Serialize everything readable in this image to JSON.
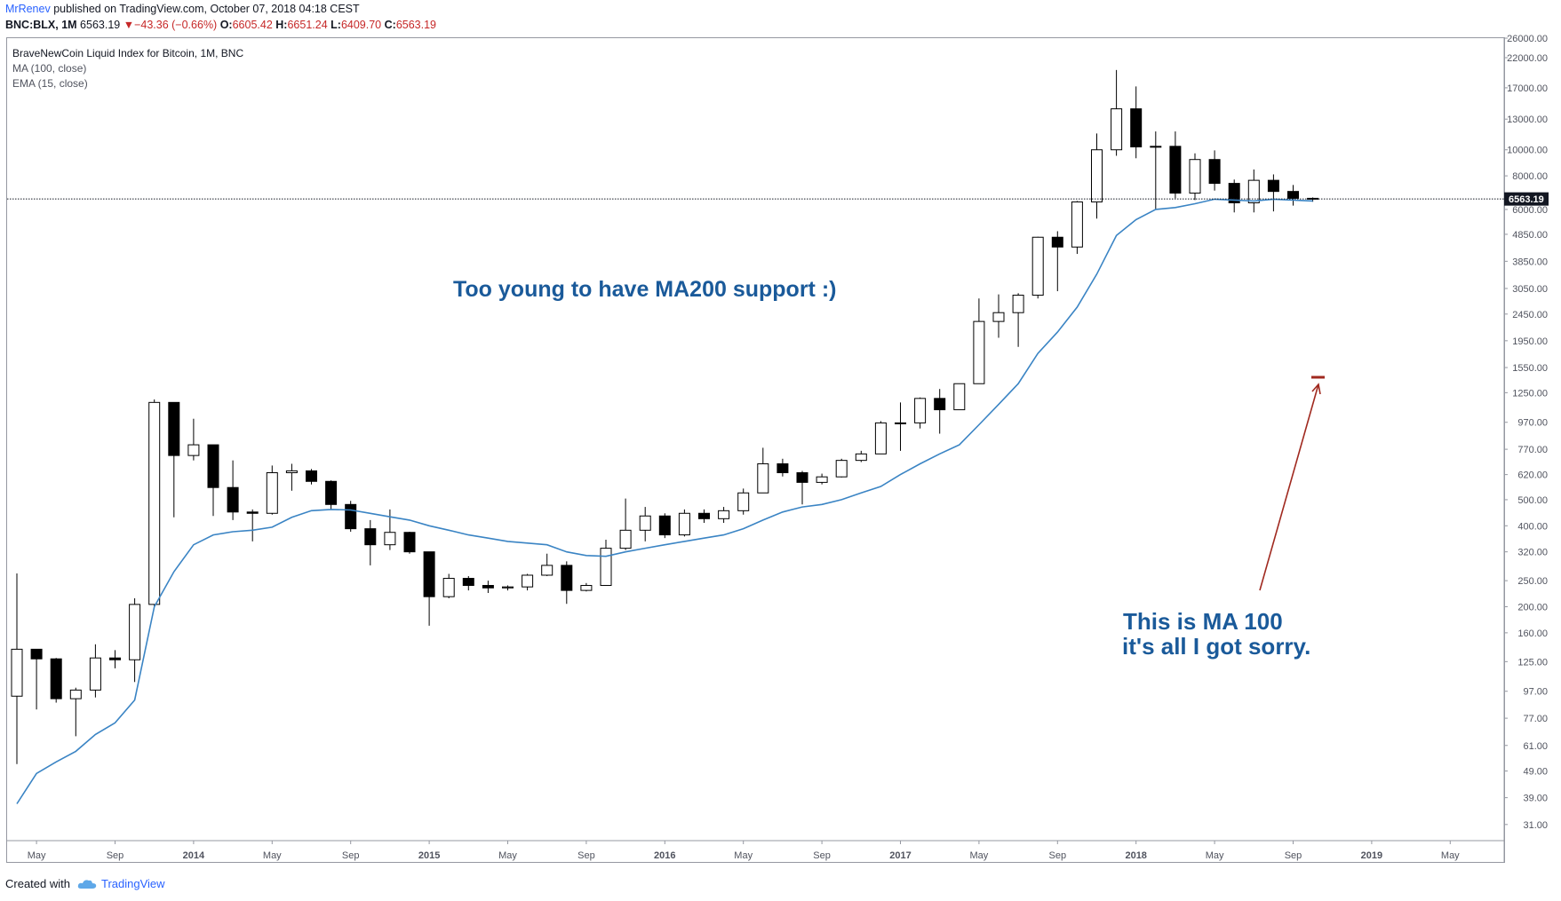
{
  "header": {
    "author": "MrRenev",
    "published": "published on TradingView.com, October 07, 2018 04:18 CEST"
  },
  "ohlc": {
    "symbol": "BNC:BLX, 1M",
    "last": "6563.19",
    "change": "−43.36 (−0.66%)",
    "o_label": "O:",
    "o": "6605.42",
    "h_label": "H:",
    "h": "6651.24",
    "l_label": "L:",
    "l": "6409.70",
    "c_label": "C:",
    "c": "6563.19"
  },
  "legend": {
    "title": "BraveNewCoin Liquid Index for Bitcoin, 1M, BNC",
    "ma": "MA (100, close)",
    "ema": "EMA (15, close)"
  },
  "footer": {
    "created": "Created with",
    "brand": "TradingView"
  },
  "chart_data": {
    "type": "candlestick",
    "y_scale": "log",
    "ylim": [
      27,
      26000
    ],
    "y_ticks": [
      "26000.00",
      "22000.00",
      "17000.00",
      "13000.00",
      "10000.00",
      "8000.00",
      "6000.00",
      "4850.00",
      "3850.00",
      "3050.00",
      "2450.00",
      "1950.00",
      "1550.00",
      "1250.00",
      "970.00",
      "770.00",
      "620.00",
      "500.00",
      "400.00",
      "320.00",
      "250.00",
      "200.00",
      "160.00",
      "125.00",
      "97.00",
      "77.00",
      "61.00",
      "49.00",
      "39.00",
      "31.00"
    ],
    "x_ticks": [
      "May",
      "Sep",
      "2014",
      "May",
      "Sep",
      "2015",
      "May",
      "Sep",
      "2016",
      "May",
      "Sep",
      "2017",
      "May",
      "Sep",
      "2018",
      "May",
      "Sep",
      "2019",
      "May"
    ],
    "first_month": "2013-04",
    "last_price_label": "6563.19",
    "candles": [
      {
        "o": 93,
        "h": 266,
        "l": 52,
        "c": 139
      },
      {
        "o": 139,
        "h": 139,
        "l": 83,
        "c": 128
      },
      {
        "o": 128,
        "h": 129,
        "l": 88,
        "c": 91
      },
      {
        "o": 91,
        "h": 100,
        "l": 66,
        "c": 98
      },
      {
        "o": 98,
        "h": 145,
        "l": 92,
        "c": 129
      },
      {
        "o": 129,
        "h": 138,
        "l": 118,
        "c": 127
      },
      {
        "o": 127,
        "h": 215,
        "l": 105,
        "c": 204
      },
      {
        "o": 204,
        "h": 1180,
        "l": 200,
        "c": 1150
      },
      {
        "o": 1150,
        "h": 1150,
        "l": 430,
        "c": 730
      },
      {
        "o": 730,
        "h": 1000,
        "l": 700,
        "c": 800
      },
      {
        "o": 800,
        "h": 800,
        "l": 435,
        "c": 555
      },
      {
        "o": 555,
        "h": 700,
        "l": 420,
        "c": 450
      },
      {
        "o": 450,
        "h": 460,
        "l": 350,
        "c": 445
      },
      {
        "o": 445,
        "h": 670,
        "l": 440,
        "c": 630
      },
      {
        "o": 630,
        "h": 680,
        "l": 540,
        "c": 640
      },
      {
        "o": 640,
        "h": 650,
        "l": 570,
        "c": 585
      },
      {
        "o": 585,
        "h": 590,
        "l": 460,
        "c": 480
      },
      {
        "o": 480,
        "h": 495,
        "l": 380,
        "c": 390
      },
      {
        "o": 390,
        "h": 420,
        "l": 285,
        "c": 340
      },
      {
        "o": 340,
        "h": 460,
        "l": 325,
        "c": 378
      },
      {
        "o": 378,
        "h": 380,
        "l": 315,
        "c": 320
      },
      {
        "o": 320,
        "h": 320,
        "l": 170,
        "c": 218
      },
      {
        "o": 218,
        "h": 265,
        "l": 215,
        "c": 255
      },
      {
        "o": 255,
        "h": 260,
        "l": 230,
        "c": 240
      },
      {
        "o": 240,
        "h": 250,
        "l": 225,
        "c": 235
      },
      {
        "o": 235,
        "h": 240,
        "l": 230,
        "c": 237
      },
      {
        "o": 237,
        "h": 265,
        "l": 230,
        "c": 262
      },
      {
        "o": 262,
        "h": 315,
        "l": 260,
        "c": 285
      },
      {
        "o": 285,
        "h": 295,
        "l": 205,
        "c": 230
      },
      {
        "o": 230,
        "h": 245,
        "l": 228,
        "c": 240
      },
      {
        "o": 240,
        "h": 355,
        "l": 240,
        "c": 330
      },
      {
        "o": 330,
        "h": 505,
        "l": 325,
        "c": 385
      },
      {
        "o": 385,
        "h": 470,
        "l": 350,
        "c": 435
      },
      {
        "o": 435,
        "h": 445,
        "l": 360,
        "c": 370
      },
      {
        "o": 370,
        "h": 460,
        "l": 365,
        "c": 445
      },
      {
        "o": 445,
        "h": 460,
        "l": 410,
        "c": 425
      },
      {
        "o": 425,
        "h": 470,
        "l": 410,
        "c": 455
      },
      {
        "o": 455,
        "h": 550,
        "l": 440,
        "c": 530
      },
      {
        "o": 530,
        "h": 780,
        "l": 530,
        "c": 680
      },
      {
        "o": 680,
        "h": 710,
        "l": 610,
        "c": 630
      },
      {
        "o": 630,
        "h": 640,
        "l": 480,
        "c": 580
      },
      {
        "o": 580,
        "h": 625,
        "l": 570,
        "c": 608
      },
      {
        "o": 608,
        "h": 710,
        "l": 605,
        "c": 700
      },
      {
        "o": 700,
        "h": 760,
        "l": 690,
        "c": 740
      },
      {
        "o": 740,
        "h": 980,
        "l": 740,
        "c": 965
      },
      {
        "o": 965,
        "h": 1150,
        "l": 760,
        "c": 965
      },
      {
        "o": 965,
        "h": 1200,
        "l": 920,
        "c": 1190
      },
      {
        "o": 1190,
        "h": 1290,
        "l": 880,
        "c": 1080
      },
      {
        "o": 1080,
        "h": 1350,
        "l": 1080,
        "c": 1350
      },
      {
        "o": 1350,
        "h": 2800,
        "l": 1350,
        "c": 2300
      },
      {
        "o": 2300,
        "h": 2900,
        "l": 2000,
        "c": 2480
      },
      {
        "o": 2480,
        "h": 2930,
        "l": 1850,
        "c": 2880
      },
      {
        "o": 2880,
        "h": 4750,
        "l": 2800,
        "c": 4730
      },
      {
        "o": 4730,
        "h": 4980,
        "l": 2980,
        "c": 4350
      },
      {
        "o": 4350,
        "h": 6450,
        "l": 4100,
        "c": 6400
      },
      {
        "o": 6400,
        "h": 11500,
        "l": 5550,
        "c": 10000
      },
      {
        "o": 10000,
        "h": 19800,
        "l": 9500,
        "c": 14200
      },
      {
        "o": 14200,
        "h": 17200,
        "l": 9300,
        "c": 10250
      },
      {
        "o": 10250,
        "h": 11700,
        "l": 6000,
        "c": 10300
      },
      {
        "o": 10300,
        "h": 11700,
        "l": 6600,
        "c": 6900
      },
      {
        "o": 6900,
        "h": 9700,
        "l": 6500,
        "c": 9200
      },
      {
        "o": 9200,
        "h": 9950,
        "l": 7050,
        "c": 7500
      },
      {
        "o": 7500,
        "h": 7750,
        "l": 5850,
        "c": 6350
      },
      {
        "o": 6350,
        "h": 8450,
        "l": 5850,
        "c": 7700
      },
      {
        "o": 7700,
        "h": 8100,
        "l": 5900,
        "c": 7000
      },
      {
        "o": 7000,
        "h": 7400,
        "l": 6200,
        "c": 6600
      },
      {
        "o": 6600,
        "h": 6650,
        "l": 6410,
        "c": 6563
      }
    ],
    "ma_100": [
      37,
      48,
      53,
      58,
      67,
      74,
      90,
      200,
      270,
      340,
      370,
      380,
      385,
      395,
      430,
      455,
      460,
      458,
      445,
      432,
      420,
      400,
      385,
      370,
      360,
      350,
      345,
      340,
      320,
      310,
      308,
      320,
      330,
      340,
      350,
      360,
      370,
      390,
      420,
      450,
      470,
      480,
      500,
      530,
      560,
      620,
      680,
      740,
      800,
      950,
      1130,
      1350,
      1750,
      2100,
      2600,
      3450,
      4800,
      5500,
      6000,
      6100,
      6300,
      6550,
      6500,
      6450,
      6550,
      6500,
      6450
    ]
  }
}
